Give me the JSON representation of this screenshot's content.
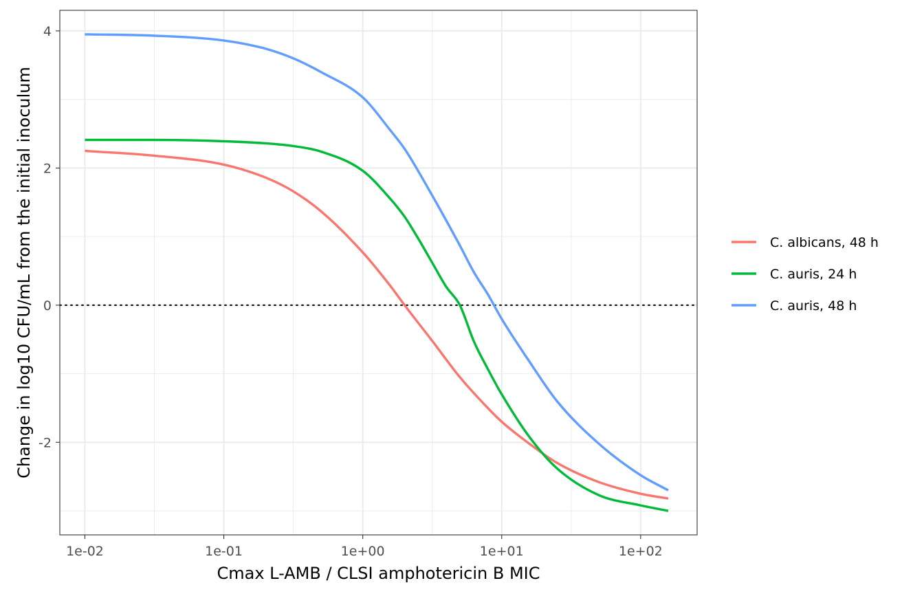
{
  "chart_data": {
    "type": "line",
    "title": "",
    "xlabel": "Cmax L-AMB / CLSI amphotericin B MIC",
    "ylabel": "Change in log10 CFU/mL from the initial inoculum",
    "x_scale": "log10",
    "xlim": [
      0.0066,
      255
    ],
    "ylim": [
      -3.35,
      4.3
    ],
    "x_ticks": [
      {
        "value": 0.01,
        "label": "1e-02"
      },
      {
        "value": 0.1,
        "label": "1e-01"
      },
      {
        "value": 1,
        "label": "1e+00"
      },
      {
        "value": 10,
        "label": "1e+01"
      },
      {
        "value": 100,
        "label": "1e+02"
      }
    ],
    "y_ticks": [
      {
        "value": -2,
        "label": "-2"
      },
      {
        "value": 0,
        "label": "0"
      },
      {
        "value": 2,
        "label": "2"
      },
      {
        "value": 4,
        "label": "4"
      }
    ],
    "grid": true,
    "reference_line": {
      "y": 0,
      "style": "dotted"
    },
    "legend_position": "right",
    "series": [
      {
        "name": "C. albicans, 48 h",
        "color": "#F8766D",
        "x": [
          0.01,
          0.0316,
          0.1,
          0.2,
          0.316,
          0.5,
          1,
          1.58,
          2,
          3.16,
          5,
          7.94,
          10,
          15.8,
          25,
          50,
          100,
          158
        ],
        "y": [
          2.25,
          2.18,
          2.05,
          1.86,
          1.66,
          1.37,
          0.77,
          0.28,
          0.0,
          -0.52,
          -1.05,
          -1.5,
          -1.7,
          -2.02,
          -2.3,
          -2.58,
          -2.75,
          -2.82
        ]
      },
      {
        "name": "C. auris, 24 h",
        "color": "#00BA38",
        "x": [
          0.01,
          0.0316,
          0.1,
          0.2,
          0.316,
          0.5,
          1,
          1.58,
          2,
          2.51,
          3.16,
          3.98,
          5,
          6.31,
          7.94,
          10,
          15.8,
          25,
          50,
          100,
          158
        ],
        "y": [
          2.41,
          2.41,
          2.39,
          2.36,
          2.32,
          2.24,
          1.96,
          1.55,
          1.29,
          0.97,
          0.62,
          0.27,
          0.0,
          -0.53,
          -0.93,
          -1.3,
          -1.92,
          -2.38,
          -2.77,
          -2.92,
          -3.0
        ]
      },
      {
        "name": "C. auris, 48 h",
        "color": "#619CFF",
        "x": [
          0.01,
          0.0316,
          0.1,
          0.2,
          0.316,
          0.5,
          1,
          1.58,
          2,
          3.16,
          5,
          6.31,
          7.94,
          10,
          15.8,
          25,
          50,
          100,
          158
        ],
        "y": [
          3.95,
          3.93,
          3.86,
          3.74,
          3.6,
          3.4,
          3.03,
          2.55,
          2.28,
          1.6,
          0.87,
          0.48,
          0.16,
          -0.2,
          -0.82,
          -1.4,
          -2.02,
          -2.48,
          -2.7
        ]
      }
    ]
  }
}
